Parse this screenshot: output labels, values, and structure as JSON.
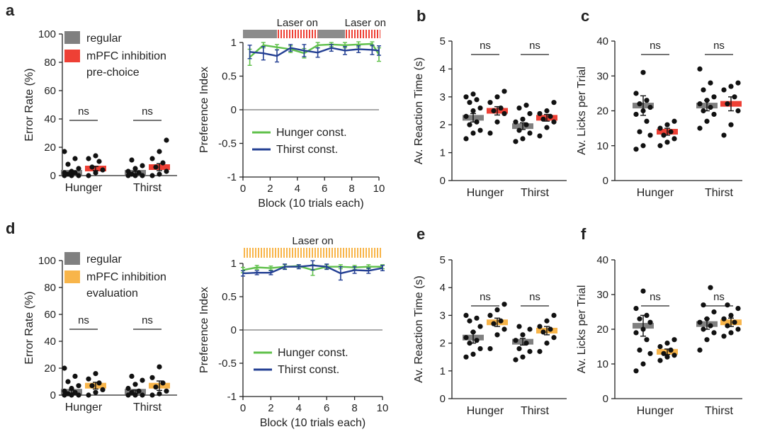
{
  "colors": {
    "regular": "#808080",
    "red": "#ee4035",
    "orange": "#f8b54a",
    "green": "#5fc04a",
    "blue": "#233f93",
    "laser_off": "#8c8c8c"
  },
  "panels": {
    "a": {
      "label": "a"
    },
    "b": {
      "label": "b"
    },
    "c": {
      "label": "c"
    },
    "d": {
      "label": "d"
    },
    "e": {
      "label": "e"
    },
    "f": {
      "label": "f"
    }
  },
  "legends": {
    "top": {
      "regular": "regular",
      "inhibition_line1": "mPFC inhibition",
      "inhibition_line2": "pre-choice"
    },
    "bottom": {
      "regular": "regular",
      "inhibition_line1": "mPFC inhibition",
      "inhibition_line2": "evaluation"
    },
    "pref_hunger": "Hunger const.",
    "pref_thirst": "Thirst const."
  },
  "laser": {
    "label": "Laser on"
  },
  "chart_data": [
    {
      "id": "a-error",
      "type": "scatter",
      "ylabel": "Error Rate (%)",
      "ylim": [
        0,
        100
      ],
      "yticks": [
        0,
        20,
        40,
        60,
        80,
        100
      ],
      "groups": [
        "Hunger",
        "Thirst"
      ],
      "sig": [
        "ns",
        "ns"
      ],
      "series": [
        {
          "group": "Hunger",
          "condition": "regular",
          "mean": 2,
          "sem": 1,
          "points": [
            0,
            0,
            0,
            1,
            2,
            2,
            3,
            5,
            8,
            12,
            17
          ]
        },
        {
          "group": "Hunger",
          "condition": "inhibition",
          "mean": 5,
          "sem": 1.5,
          "points": [
            0,
            2,
            4,
            6,
            10,
            12,
            14
          ]
        },
        {
          "group": "Thirst",
          "condition": "regular",
          "mean": 2,
          "sem": 1,
          "points": [
            0,
            0,
            0,
            1,
            2,
            3,
            5,
            7,
            11
          ]
        },
        {
          "group": "Thirst",
          "condition": "inhibition",
          "mean": 6,
          "sem": 2.5,
          "points": [
            0,
            1,
            3,
            6,
            9,
            12,
            17,
            25
          ]
        }
      ]
    },
    {
      "id": "a-pref",
      "type": "line",
      "xlabel": "Block (10 trials each)",
      "ylabel": "Preference Index",
      "xlim": [
        0,
        10
      ],
      "ylim": [
        -1,
        1
      ],
      "xticks": [
        0,
        2,
        4,
        6,
        8,
        10
      ],
      "yticks": [
        -1,
        -0.5,
        0,
        0.5,
        1
      ],
      "ytick_labels": [
        "-1",
        "-0.5",
        "0",
        "0.5",
        "1"
      ],
      "laser_segments": [
        {
          "from": 0,
          "to": 2.5,
          "state": "off"
        },
        {
          "from": 2.5,
          "to": 5.5,
          "state": "on"
        },
        {
          "from": 5.5,
          "to": 7.5,
          "state": "off"
        },
        {
          "from": 7.5,
          "to": 10.5,
          "state": "on"
        }
      ],
      "laser_labels": [
        {
          "x": 4,
          "text": "Laser on"
        },
        {
          "x": 9,
          "text": "Laser on"
        }
      ],
      "x": [
        0.5,
        1.5,
        2.5,
        3.5,
        4.5,
        5.5,
        6.5,
        7.5,
        8.5,
        9.5,
        10.5
      ],
      "series": [
        {
          "name": "Hunger const.",
          "values": [
            0.78,
            0.96,
            0.93,
            0.9,
            0.84,
            0.96,
            0.97,
            0.96,
            0.97,
            0.98,
            0.82
          ],
          "err": [
            0.12,
            0.04,
            0.04,
            0.05,
            0.07,
            0.04,
            0.03,
            0.04,
            0.04,
            0.03,
            0.1
          ]
        },
        {
          "name": "Thirst const.",
          "values": [
            0.86,
            0.84,
            0.8,
            0.92,
            0.88,
            0.85,
            0.92,
            0.88,
            0.9,
            0.89,
            0.88
          ],
          "err": [
            0.1,
            0.1,
            0.09,
            0.05,
            0.09,
            0.07,
            0.05,
            0.06,
            0.05,
            0.07,
            0.07
          ]
        }
      ]
    },
    {
      "id": "b",
      "type": "scatter",
      "ylabel": "Av. Reaction Time (s)",
      "ylim": [
        0,
        5
      ],
      "yticks": [
        0,
        1,
        2,
        3,
        4,
        5
      ],
      "groups": [
        "Hunger",
        "Thirst"
      ],
      "sig": [
        "ns",
        "ns"
      ],
      "series": [
        {
          "group": "Hunger",
          "condition": "regular",
          "mean": 2.25,
          "sem": 0.15,
          "points": [
            1.5,
            1.7,
            1.8,
            2.0,
            2.1,
            2.3,
            2.5,
            2.6,
            2.8,
            2.9,
            3.0,
            3.1
          ]
        },
        {
          "group": "Hunger",
          "condition": "inhibition",
          "mean": 2.5,
          "sem": 0.15,
          "points": [
            1.7,
            2.1,
            2.4,
            2.5,
            2.6,
            2.8,
            3.0,
            3.2
          ]
        },
        {
          "group": "Thirst",
          "condition": "regular",
          "mean": 1.95,
          "sem": 0.12,
          "points": [
            1.4,
            1.5,
            1.7,
            1.8,
            2.0,
            2.1,
            2.2,
            2.4,
            2.6,
            2.7
          ]
        },
        {
          "group": "Thirst",
          "condition": "inhibition",
          "mean": 2.25,
          "sem": 0.12,
          "points": [
            1.6,
            1.9,
            2.1,
            2.2,
            2.3,
            2.4,
            2.5,
            2.8
          ]
        }
      ]
    },
    {
      "id": "c",
      "type": "scatter",
      "ylabel": "Av. Licks per Trial",
      "ylim": [
        0,
        40
      ],
      "yticks": [
        0,
        10,
        20,
        30,
        40
      ],
      "groups": [
        "Hunger",
        "Thirst"
      ],
      "sig": [
        "ns",
        "ns"
      ],
      "series": [
        {
          "group": "Hunger",
          "condition": "regular",
          "mean": 21.5,
          "sem": 2.8,
          "points": [
            9,
            10,
            13,
            14,
            17,
            19,
            20,
            21,
            22,
            23,
            25,
            31
          ]
        },
        {
          "group": "Hunger",
          "condition": "inhibition",
          "mean": 14,
          "sem": 1,
          "points": [
            10,
            11,
            12,
            13,
            14,
            15,
            16,
            17
          ]
        },
        {
          "group": "Thirst",
          "condition": "regular",
          "mean": 21.5,
          "sem": 1.5,
          "points": [
            15,
            17,
            19,
            20,
            21,
            22,
            23,
            24,
            26,
            28,
            32
          ]
        },
        {
          "group": "Thirst",
          "condition": "inhibition",
          "mean": 22,
          "sem": 2,
          "points": [
            13,
            16,
            20,
            22,
            24,
            26,
            27,
            28
          ]
        }
      ]
    },
    {
      "id": "d-error",
      "type": "scatter",
      "ylabel": "Error Rate (%)",
      "ylim": [
        0,
        100
      ],
      "yticks": [
        0,
        20,
        40,
        60,
        80,
        100
      ],
      "groups": [
        "Hunger",
        "Thirst"
      ],
      "sig": [
        "ns",
        "ns"
      ],
      "series": [
        {
          "group": "Hunger",
          "condition": "regular",
          "mean": 2.5,
          "sem": 1.2,
          "points": [
            0,
            0,
            0,
            1,
            2,
            3,
            5,
            7,
            10,
            14,
            20
          ]
        },
        {
          "group": "Hunger",
          "condition": "evaluation",
          "mean": 7,
          "sem": 2.5,
          "points": [
            0,
            2,
            4,
            7,
            9,
            12,
            16
          ]
        },
        {
          "group": "Thirst",
          "condition": "regular",
          "mean": 2.5,
          "sem": 1.2,
          "points": [
            0,
            0,
            0,
            2,
            3,
            5,
            8,
            11,
            14
          ]
        },
        {
          "group": "Thirst",
          "condition": "evaluation",
          "mean": 7,
          "sem": 3.5,
          "points": [
            0,
            1,
            3,
            6,
            9,
            13,
            21
          ]
        }
      ]
    },
    {
      "id": "d-pref",
      "type": "line",
      "xlabel": "Block (10 trials each)",
      "ylabel": "Preference Index",
      "xlim": [
        0,
        10
      ],
      "ylim": [
        -1,
        1
      ],
      "xticks": [
        0,
        2,
        4,
        6,
        8,
        10
      ],
      "yticks": [
        -1,
        -0.5,
        0,
        0.5,
        1
      ],
      "ytick_labels": [
        "-1",
        "-0.5",
        "0",
        "0.5",
        "1"
      ],
      "laser_segments": [
        {
          "from": 0,
          "to": 10,
          "state": "on"
        }
      ],
      "laser_labels": [
        {
          "x": 5,
          "text": "Laser on"
        }
      ],
      "x": [
        0,
        1,
        2,
        3,
        4,
        5,
        6,
        7,
        8,
        9,
        10
      ],
      "series": [
        {
          "name": "Hunger const.",
          "values": [
            0.9,
            0.94,
            0.93,
            0.95,
            0.96,
            0.9,
            0.95,
            0.95,
            0.94,
            0.95,
            0.95
          ],
          "err": [
            0.04,
            0.03,
            0.03,
            0.03,
            0.02,
            0.08,
            0.03,
            0.03,
            0.03,
            0.03,
            0.03
          ]
        },
        {
          "name": "Thirst const.",
          "values": [
            0.85,
            0.86,
            0.86,
            0.95,
            0.95,
            0.97,
            0.95,
            0.85,
            0.9,
            0.89,
            0.93
          ],
          "err": [
            0.04,
            0.03,
            0.03,
            0.04,
            0.03,
            0.07,
            0.04,
            0.1,
            0.05,
            0.04,
            0.04
          ]
        }
      ]
    },
    {
      "id": "e",
      "type": "scatter",
      "ylabel": "Av. Reaction Time (s)",
      "ylim": [
        0,
        5
      ],
      "yticks": [
        0,
        1,
        2,
        3,
        4,
        5
      ],
      "groups": [
        "Hunger",
        "Thirst"
      ],
      "sig": [
        "ns",
        "ns"
      ],
      "series": [
        {
          "group": "Hunger",
          "condition": "regular",
          "mean": 2.2,
          "sem": 0.2,
          "points": [
            1.5,
            1.6,
            1.8,
            2.0,
            2.1,
            2.2,
            2.4,
            2.6,
            2.8,
            2.9,
            3.0
          ]
        },
        {
          "group": "Hunger",
          "condition": "evaluation",
          "mean": 2.75,
          "sem": 0.15,
          "points": [
            1.8,
            2.3,
            2.5,
            2.7,
            2.8,
            3.0,
            3.2,
            3.4
          ]
        },
        {
          "group": "Thirst",
          "condition": "regular",
          "mean": 2.05,
          "sem": 0.12,
          "points": [
            1.4,
            1.5,
            1.7,
            1.8,
            2.0,
            2.1,
            2.3,
            2.5,
            2.6
          ]
        },
        {
          "group": "Thirst",
          "condition": "evaluation",
          "mean": 2.45,
          "sem": 0.15,
          "points": [
            1.7,
            2.0,
            2.2,
            2.4,
            2.5,
            2.6,
            2.8,
            3.0
          ]
        }
      ]
    },
    {
      "id": "f",
      "type": "scatter",
      "ylabel": "Av. Licks per Trial",
      "ylim": [
        0,
        40
      ],
      "yticks": [
        0,
        10,
        20,
        30,
        40
      ],
      "groups": [
        "Hunger",
        "Thirst"
      ],
      "sig": [
        "ns",
        "ns"
      ],
      "series": [
        {
          "group": "Hunger",
          "condition": "regular",
          "mean": 21,
          "sem": 3,
          "points": [
            8,
            10,
            13,
            14,
            17,
            19,
            20,
            22,
            23,
            24,
            26,
            31
          ]
        },
        {
          "group": "Hunger",
          "condition": "evaluation",
          "mean": 13.5,
          "sem": 0.8,
          "points": [
            11,
            12,
            12.5,
            13,
            14,
            15,
            16,
            17
          ]
        },
        {
          "group": "Thirst",
          "condition": "regular",
          "mean": 21.5,
          "sem": 1.5,
          "points": [
            14,
            17,
            19,
            20,
            21,
            22,
            23,
            25,
            27,
            32
          ]
        },
        {
          "group": "Thirst",
          "condition": "evaluation",
          "mean": 22,
          "sem": 1.2,
          "points": [
            18,
            19,
            20,
            21,
            22,
            23,
            24,
            26,
            27
          ]
        }
      ]
    }
  ]
}
